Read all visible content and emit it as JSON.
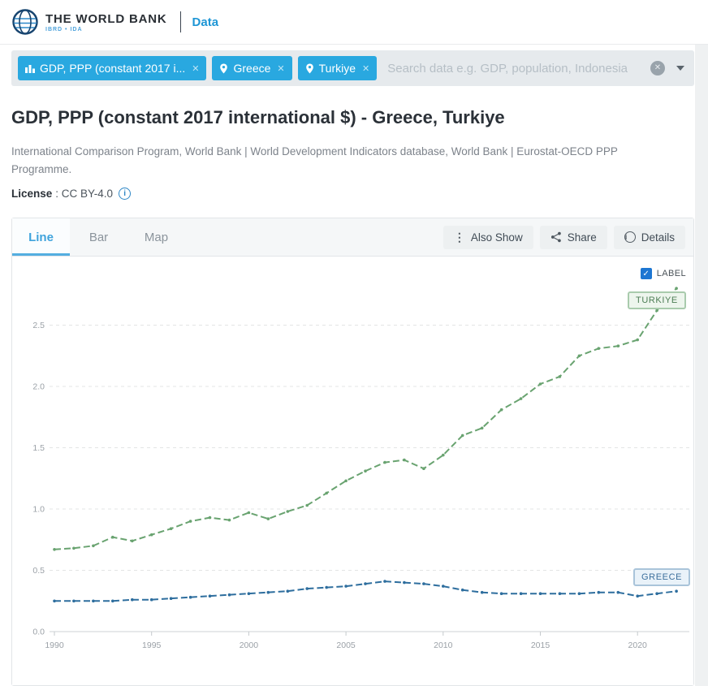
{
  "header": {
    "brand": "THE WORLD BANK",
    "brand_sub": "IBRD • IDA",
    "nav_data": "Data"
  },
  "search": {
    "filters": [
      {
        "label": "GDP, PPP (constant 2017 i...",
        "icon": "bar-chart",
        "close": "✕"
      },
      {
        "label": "Greece",
        "icon": "location-pin",
        "close": "✕"
      },
      {
        "label": "Turkiye",
        "icon": "location-pin",
        "close": "✕"
      }
    ],
    "placeholder": "Search data e.g. GDP, population, Indonesia",
    "clear_glyph": "✕"
  },
  "page": {
    "title": "GDP, PPP (constant 2017 international $) - Greece, Turkiye",
    "source": "International Comparison Program, World Bank | World Development Indicators database, World Bank | Eurostat-OECD PPP Programme.",
    "license_label": "License",
    "license_value": ": CC BY-4.0",
    "license_info_glyph": "i"
  },
  "toolbar": {
    "tabs": [
      {
        "label": "Line",
        "active": true
      },
      {
        "label": "Bar",
        "active": false
      },
      {
        "label": "Map",
        "active": false
      }
    ],
    "buttons": [
      {
        "label": "Also Show",
        "icon": "kebab-menu"
      },
      {
        "label": "Share",
        "icon": "share-nodes"
      },
      {
        "label": "Details",
        "icon": "info-circle"
      }
    ]
  },
  "chart": {
    "label_checkbox_text": "LABEL",
    "checkbox_glyph": "✓",
    "turkiye_tag": "TURKIYE",
    "greece_tag": "GREECE"
  },
  "chart_data": {
    "type": "line",
    "title": "GDP, PPP (constant 2017 international $) - Greece, Turkiye",
    "x": [
      1990,
      1991,
      1992,
      1993,
      1994,
      1995,
      1996,
      1997,
      1998,
      1999,
      2000,
      2001,
      2002,
      2003,
      2004,
      2005,
      2006,
      2007,
      2008,
      2009,
      2010,
      2011,
      2012,
      2013,
      2014,
      2015,
      2016,
      2017,
      2018,
      2019,
      2020,
      2021,
      2022
    ],
    "series": [
      {
        "name": "Turkiye",
        "color": "#69a370",
        "values": [
          0.67,
          0.68,
          0.7,
          0.77,
          0.74,
          0.79,
          0.84,
          0.9,
          0.93,
          0.91,
          0.97,
          0.92,
          0.98,
          1.03,
          1.13,
          1.23,
          1.31,
          1.38,
          1.4,
          1.33,
          1.44,
          1.6,
          1.66,
          1.81,
          1.9,
          2.02,
          2.08,
          2.25,
          2.31,
          2.33,
          2.38,
          2.62,
          2.8
        ]
      },
      {
        "name": "Greece",
        "color": "#2e6e9e",
        "values": [
          0.25,
          0.25,
          0.25,
          0.25,
          0.26,
          0.26,
          0.27,
          0.28,
          0.29,
          0.3,
          0.31,
          0.32,
          0.33,
          0.35,
          0.36,
          0.37,
          0.39,
          0.41,
          0.4,
          0.39,
          0.37,
          0.34,
          0.32,
          0.31,
          0.31,
          0.31,
          0.31,
          0.31,
          0.32,
          0.32,
          0.29,
          0.31,
          0.33
        ]
      }
    ],
    "yticks": [
      0.0,
      0.5,
      1.0,
      1.5,
      2.0,
      2.5
    ],
    "xticks": [
      1990,
      1995,
      2000,
      2005,
      2010,
      2015,
      2020
    ],
    "ylim": [
      0,
      2.9
    ],
    "xlabel": "",
    "ylabel": "",
    "grid": true,
    "legend_position": "inline-labels",
    "unit_scale": "trillions"
  },
  "colors": {
    "tag_blue": "#29a8e0",
    "link_blue": "#1e96d5",
    "active_tab_blue": "#3fa3dc",
    "checkbox_blue": "#1d76d2",
    "turkiye_green": "#69a370",
    "greece_blue": "#2e6e9e"
  }
}
